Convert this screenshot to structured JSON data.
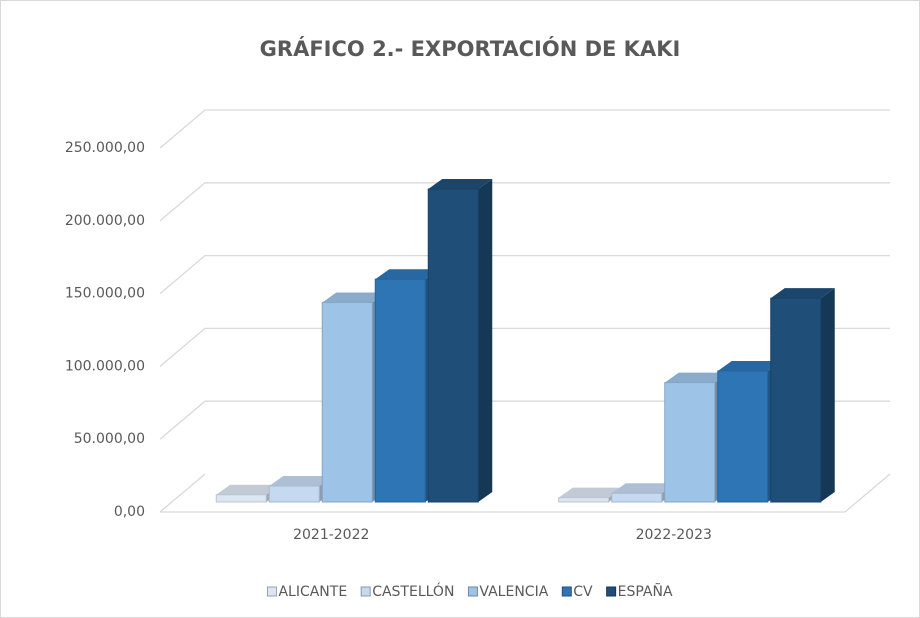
{
  "chart_data": {
    "type": "bar3d",
    "title": "GRÁFICO 2.- EXPORTACIÓN DE KAKI",
    "categories": [
      "2021-2022",
      "2022-2023"
    ],
    "series": [
      {
        "name": "ALICANTE",
        "color": "#dce6f2",
        "values": [
          5000,
          3000
        ]
      },
      {
        "name": "CASTELLÓN",
        "color": "#c5d9f1",
        "values": [
          11000,
          6000
        ]
      },
      {
        "name": "VALENCIA",
        "color": "#9dc3e6",
        "values": [
          137000,
          82000
        ]
      },
      {
        "name": "CV",
        "color": "#2e75b6",
        "values": [
          153000,
          90000
        ]
      },
      {
        "name": "ESPAÑA",
        "color": "#1f4e79",
        "values": [
          215000,
          140000
        ]
      }
    ],
    "ylim": [
      0,
      250000
    ],
    "yticks": [
      {
        "value": 0,
        "label": "0,00"
      },
      {
        "value": 50000,
        "label": "50.000,00"
      },
      {
        "value": 100000,
        "label": "100.000,00"
      },
      {
        "value": 150000,
        "label": "150.000,00"
      },
      {
        "value": 200000,
        "label": "200.000,00"
      },
      {
        "value": 250000,
        "label": "250.000,00"
      }
    ],
    "grid": true,
    "legend": "bottom"
  }
}
